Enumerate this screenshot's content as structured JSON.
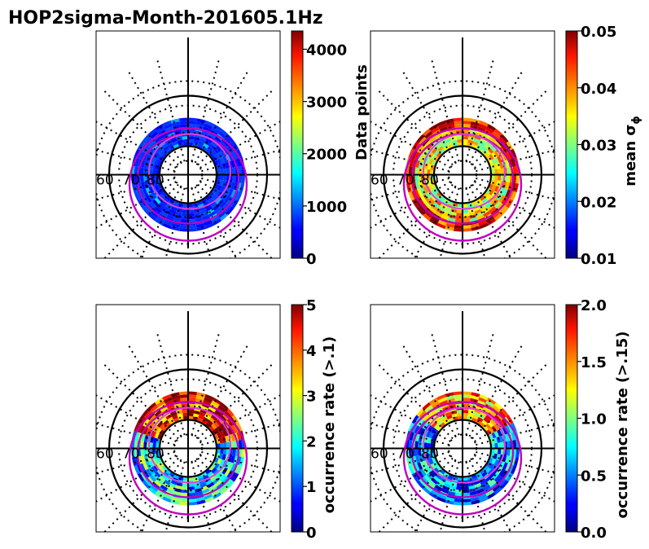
{
  "title": "HOP2sigma-Month-201605.1Hz",
  "chart_data": [
    {
      "type": "heatmap",
      "projection": "polar",
      "position": "top-left",
      "colorbar_label": "Data points",
      "colorbar_ticks": [
        "0",
        "1000",
        "2000",
        "3000",
        "4000"
      ],
      "colorbar_range": [
        0,
        4350
      ],
      "lat_labels": [
        "60",
        "70",
        "80"
      ],
      "dominant_level": 0.12
    },
    {
      "type": "heatmap",
      "projection": "polar",
      "position": "top-right",
      "colorbar_label": "mean σ",
      "colorbar_label_sub": "ϕ",
      "colorbar_ticks": [
        "0.01",
        "0.02",
        "0.03",
        "0.04",
        "0.05"
      ],
      "colorbar_range": [
        0.01,
        0.05
      ],
      "lat_labels": [
        "60",
        "70",
        "80"
      ],
      "dominant_level": 0.68
    },
    {
      "type": "heatmap",
      "projection": "polar",
      "position": "bottom-left",
      "colorbar_label": "occurrence rate (>.1)",
      "colorbar_ticks": [
        "0",
        "1",
        "2",
        "3",
        "4",
        "5"
      ],
      "colorbar_range": [
        0,
        5
      ],
      "lat_labels": [
        "60",
        "70",
        "80"
      ],
      "dominant_level": 0.3
    },
    {
      "type": "heatmap",
      "projection": "polar",
      "position": "bottom-right",
      "colorbar_label": "occurrence rate (>.15)",
      "colorbar_ticks": [
        "0.0",
        "0.5",
        "1.0",
        "1.5",
        "2.0"
      ],
      "colorbar_range": [
        0,
        2
      ],
      "lat_labels": [
        "60",
        "70",
        "80"
      ],
      "dominant_level": 0.22
    }
  ],
  "colors": {
    "oval_magenta": "#c000c0",
    "oval_pink": "#e040e0",
    "grid_black": "#000000"
  }
}
